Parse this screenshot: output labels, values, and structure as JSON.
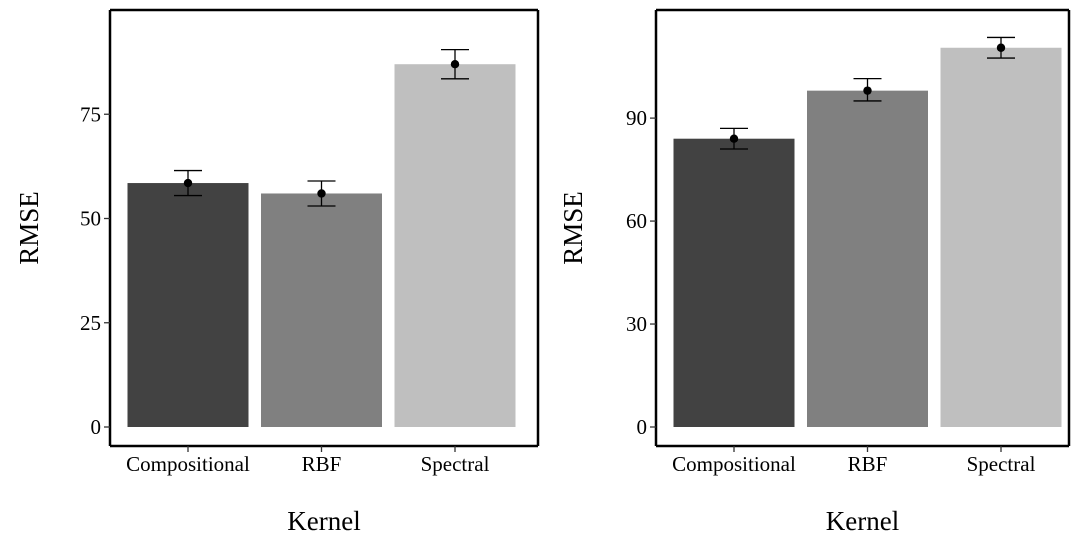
{
  "chart_data": [
    {
      "type": "bar",
      "categories": [
        "Compositional",
        "RBF",
        "Spectral"
      ],
      "values": [
        58.5,
        56,
        87
      ],
      "errors": [
        [
          55.5,
          61.5
        ],
        [
          53,
          59
        ],
        [
          83.5,
          90.5
        ]
      ],
      "xlabel": "Kernel",
      "ylabel": "RMSE",
      "ylim": [
        0,
        100
      ],
      "yticks": [
        0,
        25,
        50,
        75
      ],
      "grid": false
    },
    {
      "type": "bar",
      "categories": [
        "Compositional",
        "RBF",
        "Spectral"
      ],
      "values": [
        84,
        98,
        110.5
      ],
      "errors": [
        [
          81,
          87
        ],
        [
          95,
          101.5
        ],
        [
          107.5,
          113.5
        ]
      ],
      "xlabel": "Kernel",
      "ylabel": "RMSE",
      "ylim": [
        0,
        121.5
      ],
      "yticks": [
        0,
        30,
        60,
        90
      ],
      "grid": false
    }
  ],
  "colors": [
    "#424242",
    "#808080",
    "#bfbfbf"
  ]
}
